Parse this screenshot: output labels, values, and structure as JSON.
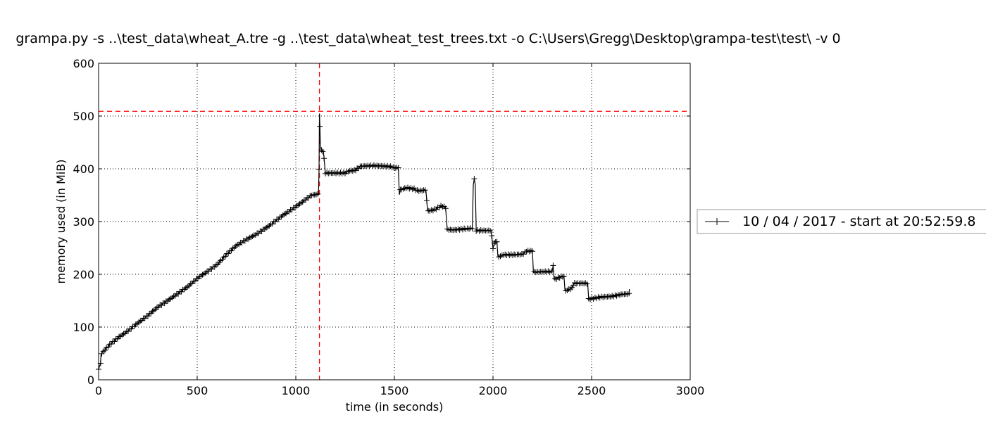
{
  "chart_data": {
    "type": "line",
    "title": "grampa.py -s ..\\test_data\\wheat_A.tre -g ..\\test_data\\wheat_test_trees.txt -o C:\\Users\\Gregg\\Desktop\\grampa-test\\test\\ -v 0",
    "xlabel": "time (in seconds)",
    "ylabel": "memory used (in MiB)",
    "xlim": [
      0,
      3000
    ],
    "ylim": [
      0,
      600
    ],
    "x_ticks": [
      0,
      500,
      1000,
      1500,
      2000,
      2500,
      3000
    ],
    "y_ticks": [
      0,
      100,
      200,
      300,
      400,
      500,
      600
    ],
    "x_tick_labels": [
      "0",
      "500",
      "1000",
      "1500",
      "2000",
      "2500",
      "3000"
    ],
    "y_tick_labels": [
      "0",
      "100",
      "200",
      "300",
      "400",
      "500",
      "600"
    ],
    "grid": true,
    "legend_position": "right, outside plot",
    "reference_lines": {
      "max_memory_y": 509,
      "max_memory_x": 1120,
      "color": "#ff0000",
      "style": "dashed"
    },
    "series": [
      {
        "name": "10 / 04 / 2017 - start at 20:52:59.8",
        "color": "#000000",
        "marker": "+",
        "points": [
          [
            0,
            20
          ],
          [
            5,
            25
          ],
          [
            10,
            32
          ],
          [
            12,
            48
          ],
          [
            20,
            52
          ],
          [
            40,
            60
          ],
          [
            60,
            68
          ],
          [
            100,
            80
          ],
          [
            150,
            93
          ],
          [
            200,
            108
          ],
          [
            250,
            122
          ],
          [
            300,
            138
          ],
          [
            350,
            150
          ],
          [
            400,
            163
          ],
          [
            450,
            176
          ],
          [
            500,
            192
          ],
          [
            550,
            205
          ],
          [
            600,
            218
          ],
          [
            650,
            238
          ],
          [
            700,
            255
          ],
          [
            750,
            266
          ],
          [
            800,
            276
          ],
          [
            850,
            288
          ],
          [
            900,
            302
          ],
          [
            950,
            316
          ],
          [
            1000,
            328
          ],
          [
            1050,
            342
          ],
          [
            1080,
            350
          ],
          [
            1115,
            352
          ],
          [
            1118,
            400
          ],
          [
            1120,
            505
          ],
          [
            1122,
            480
          ],
          [
            1125,
            440
          ],
          [
            1130,
            436
          ],
          [
            1140,
            432
          ],
          [
            1150,
            392
          ],
          [
            1200,
            392
          ],
          [
            1250,
            392
          ],
          [
            1270,
            396
          ],
          [
            1300,
            397
          ],
          [
            1330,
            405
          ],
          [
            1400,
            406
          ],
          [
            1450,
            405
          ],
          [
            1480,
            404
          ],
          [
            1500,
            402
          ],
          [
            1520,
            402
          ],
          [
            1525,
            352
          ],
          [
            1530,
            360
          ],
          [
            1560,
            364
          ],
          [
            1600,
            362
          ],
          [
            1620,
            358
          ],
          [
            1660,
            360
          ],
          [
            1668,
            320
          ],
          [
            1700,
            322
          ],
          [
            1740,
            330
          ],
          [
            1760,
            326
          ],
          [
            1768,
            285
          ],
          [
            1800,
            284
          ],
          [
            1850,
            286
          ],
          [
            1895,
            287
          ],
          [
            1900,
            370
          ],
          [
            1905,
            380
          ],
          [
            1910,
            370
          ],
          [
            1915,
            283
          ],
          [
            1950,
            283
          ],
          [
            1990,
            283
          ],
          [
            2000,
            250
          ],
          [
            2010,
            262
          ],
          [
            2020,
            262
          ],
          [
            2025,
            232
          ],
          [
            2050,
            237
          ],
          [
            2100,
            237
          ],
          [
            2150,
            238
          ],
          [
            2170,
            244
          ],
          [
            2200,
            244
          ],
          [
            2205,
            204
          ],
          [
            2250,
            205
          ],
          [
            2280,
            205
          ],
          [
            2300,
            205
          ],
          [
            2305,
            218
          ],
          [
            2310,
            190
          ],
          [
            2330,
            193
          ],
          [
            2350,
            196
          ],
          [
            2360,
            196
          ],
          [
            2365,
            168
          ],
          [
            2400,
            174
          ],
          [
            2410,
            183
          ],
          [
            2450,
            183
          ],
          [
            2480,
            183
          ],
          [
            2485,
            153
          ],
          [
            2550,
            157
          ],
          [
            2600,
            158
          ],
          [
            2650,
            162
          ],
          [
            2690,
            163
          ],
          [
            2692,
            172
          ]
        ]
      }
    ]
  }
}
